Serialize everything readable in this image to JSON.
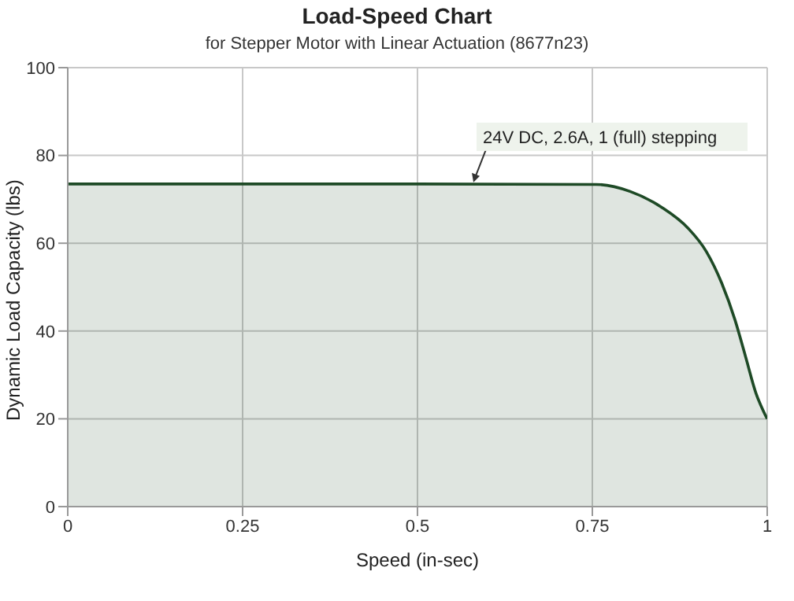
{
  "chart_data": {
    "type": "area",
    "title": "Load-Speed Chart",
    "subtitle": "for Stepper Motor with Linear Actuation (8677n23)",
    "xlabel": "Speed (in-sec)",
    "ylabel": "Dynamic Load Capacity (lbs)",
    "x": [
      0,
      0.25,
      0.5,
      0.755,
      0.804,
      0.849,
      0.887,
      0.913,
      0.935,
      0.954,
      0.969,
      0.984,
      0.995,
      1
    ],
    "series": [
      {
        "color": "#1e4a26",
        "values": [
          73.5,
          73.5,
          73.5,
          73.4,
          71.8,
          68.2,
          63.4,
          58.1,
          50.9,
          42.5,
          34.2,
          25.8,
          21.6,
          20
        ]
      }
    ],
    "xlim": [
      0,
      1
    ],
    "xticks": [
      0,
      0.25,
      0.5,
      0.75,
      1
    ],
    "ylim": [
      0,
      100
    ],
    "yticks": [
      0,
      20,
      40,
      60,
      80,
      100
    ],
    "grid": true,
    "annotations": [
      {
        "text": "24V DC, 2.6A, 1 (full) stepping",
        "x": 0.58,
        "y": 73.5
      }
    ]
  }
}
